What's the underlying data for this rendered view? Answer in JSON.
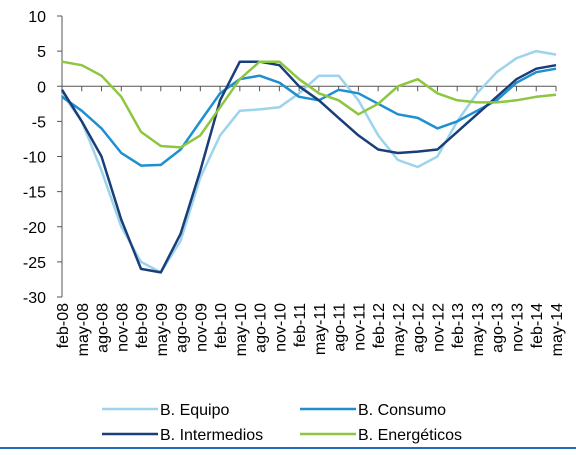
{
  "chart_data": {
    "type": "line",
    "categories": [
      "feb-08",
      "may-08",
      "ago-08",
      "nov-08",
      "feb-09",
      "may-09",
      "ago-09",
      "nov-09",
      "feb-10",
      "may-10",
      "ago-10",
      "nov-10",
      "feb-11",
      "may-11",
      "ago-11",
      "nov-11",
      "feb-12",
      "may-12",
      "ago-12",
      "nov-12",
      "feb-13",
      "may-13",
      "ago-13",
      "nov-13",
      "feb-14",
      "may-14"
    ],
    "series": [
      {
        "name": "B. Equipo",
        "color": "#9dd4ec",
        "values": [
          -1,
          -5,
          -12,
          -20,
          -25,
          -26.5,
          -22,
          -13,
          -7,
          -3.5,
          -3.3,
          -3,
          -1,
          1.5,
          1.5,
          -2,
          -7,
          -10.5,
          -11.5,
          -10,
          -5,
          -1,
          2,
          4,
          5,
          4.5
        ]
      },
      {
        "name": "B. Consumo",
        "color": "#1e8fd0",
        "values": [
          -1.5,
          -3.5,
          -6,
          -9.5,
          -11.3,
          -11.2,
          -9,
          -5,
          -1,
          1,
          1.5,
          0.5,
          -1.5,
          -2,
          -0.5,
          -1,
          -2.5,
          -4,
          -4.5,
          -6,
          -5,
          -3.5,
          -2,
          0.5,
          2,
          2.5
        ]
      },
      {
        "name": "B. Intermedios",
        "color": "#1a3e78",
        "values": [
          -0.5,
          -5,
          -10,
          -19,
          -26,
          -26.5,
          -21,
          -12,
          -2,
          3.5,
          3.5,
          3,
          0,
          -2,
          -4.5,
          -7,
          -9,
          -9.5,
          -9.3,
          -9,
          -6.5,
          -4,
          -1.5,
          1,
          2.5,
          3
        ]
      },
      {
        "name": "B. Energéticos",
        "color": "#8dc63f",
        "values": [
          3.5,
          3,
          1.5,
          -1.5,
          -6.5,
          -8.5,
          -8.7,
          -7,
          -3,
          1,
          3.5,
          3.5,
          1,
          -1,
          -2,
          -4,
          -2.5,
          0,
          1,
          -1,
          -2,
          -2.3,
          -2.3,
          -2,
          -1.5,
          -1.2
        ]
      }
    ],
    "ylim": [
      -30,
      10
    ],
    "yticks": [
      -30,
      -25,
      -20,
      -15,
      -10,
      -5,
      0,
      5,
      10
    ]
  }
}
